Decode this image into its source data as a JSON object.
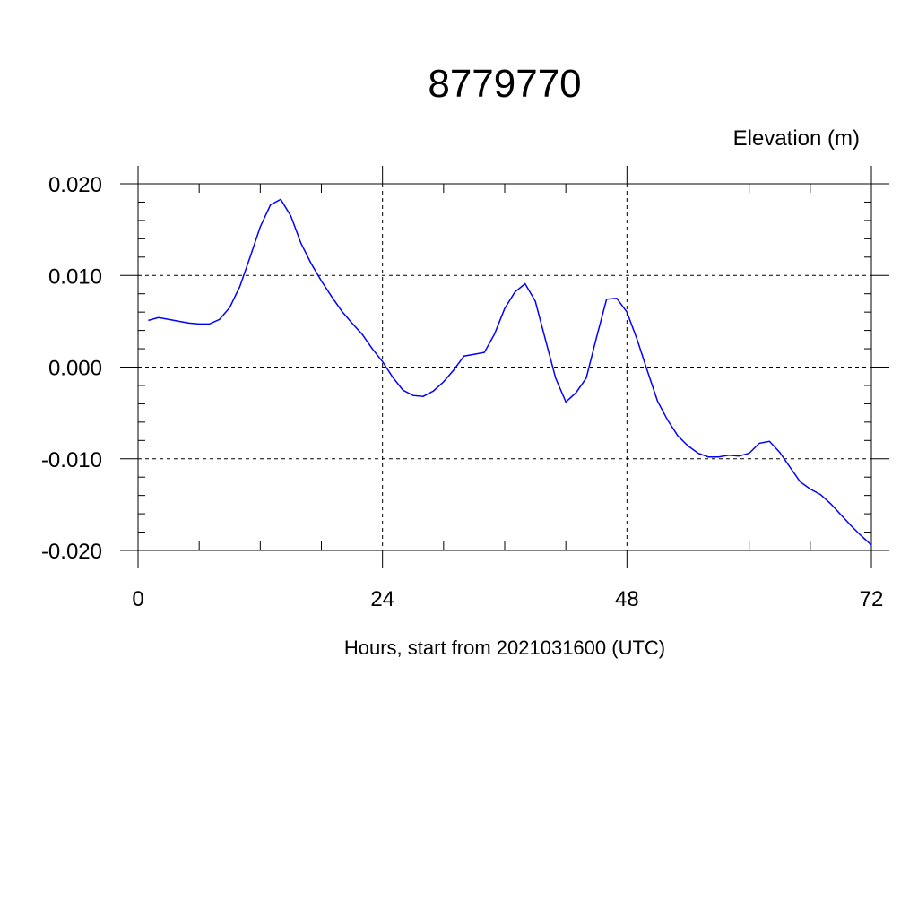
{
  "chart_data": {
    "type": "line",
    "title": "8779770",
    "ylabel": "Elevation (m)",
    "xlabel": "Hours, start from 2021031600 (UTC)",
    "xlim": [
      0,
      72
    ],
    "ylim": [
      -0.02,
      0.02
    ],
    "x_ticks": [
      0,
      24,
      48,
      72
    ],
    "x_tick_labels": [
      "0",
      "24",
      "48",
      "72"
    ],
    "y_ticks": [
      -0.02,
      -0.01,
      0.0,
      0.01,
      0.02
    ],
    "y_tick_labels": [
      "-0.020",
      "-0.010",
      "0.000",
      "0.010",
      "0.020"
    ],
    "grid": true,
    "line_color": "#0000ff",
    "series": [
      {
        "x": [
          1,
          2,
          3,
          4,
          5,
          6,
          7,
          8,
          9,
          10,
          11,
          12,
          13,
          14,
          15,
          16,
          17,
          18,
          19,
          20,
          21,
          22,
          23,
          24,
          25,
          26,
          27,
          28,
          29,
          30,
          31,
          32,
          33,
          34,
          35,
          36,
          37,
          38,
          39,
          40,
          41,
          42,
          43,
          44,
          45,
          46,
          47,
          48,
          49,
          50,
          51,
          52,
          53,
          54,
          55,
          56,
          57,
          58,
          59,
          60,
          61,
          62,
          63,
          64,
          65,
          66,
          67,
          68,
          69,
          70,
          71,
          72
        ],
        "values": [
          0.0051,
          0.0054,
          0.0052,
          0.005,
          0.0048,
          0.0047,
          0.0047,
          0.0052,
          0.0065,
          0.0088,
          0.012,
          0.0153,
          0.0177,
          0.0183,
          0.0165,
          0.0135,
          0.0113,
          0.0094,
          0.0077,
          0.0061,
          0.0048,
          0.0036,
          0.002,
          0.0006,
          -0.0011,
          -0.0025,
          -0.0031,
          -0.0032,
          -0.0026,
          -0.0016,
          -0.0003,
          0.0012,
          0.0014,
          0.0016,
          0.0036,
          0.0064,
          0.0082,
          0.0091,
          0.0072,
          0.003,
          -0.0012,
          -0.0038,
          -0.0028,
          -0.0012,
          0.0032,
          0.0074,
          0.0075,
          0.006,
          0.003,
          -0.0004,
          -0.0037,
          -0.0058,
          -0.0075,
          -0.0086,
          -0.0094,
          -0.0098,
          -0.0098,
          -0.0096,
          -0.0097,
          -0.0094,
          -0.0083,
          -0.0081,
          -0.0093,
          -0.0109,
          -0.0125,
          -0.0133,
          -0.0139,
          -0.0149,
          -0.0161,
          -0.0173,
          -0.0184,
          -0.0194
        ]
      }
    ]
  }
}
